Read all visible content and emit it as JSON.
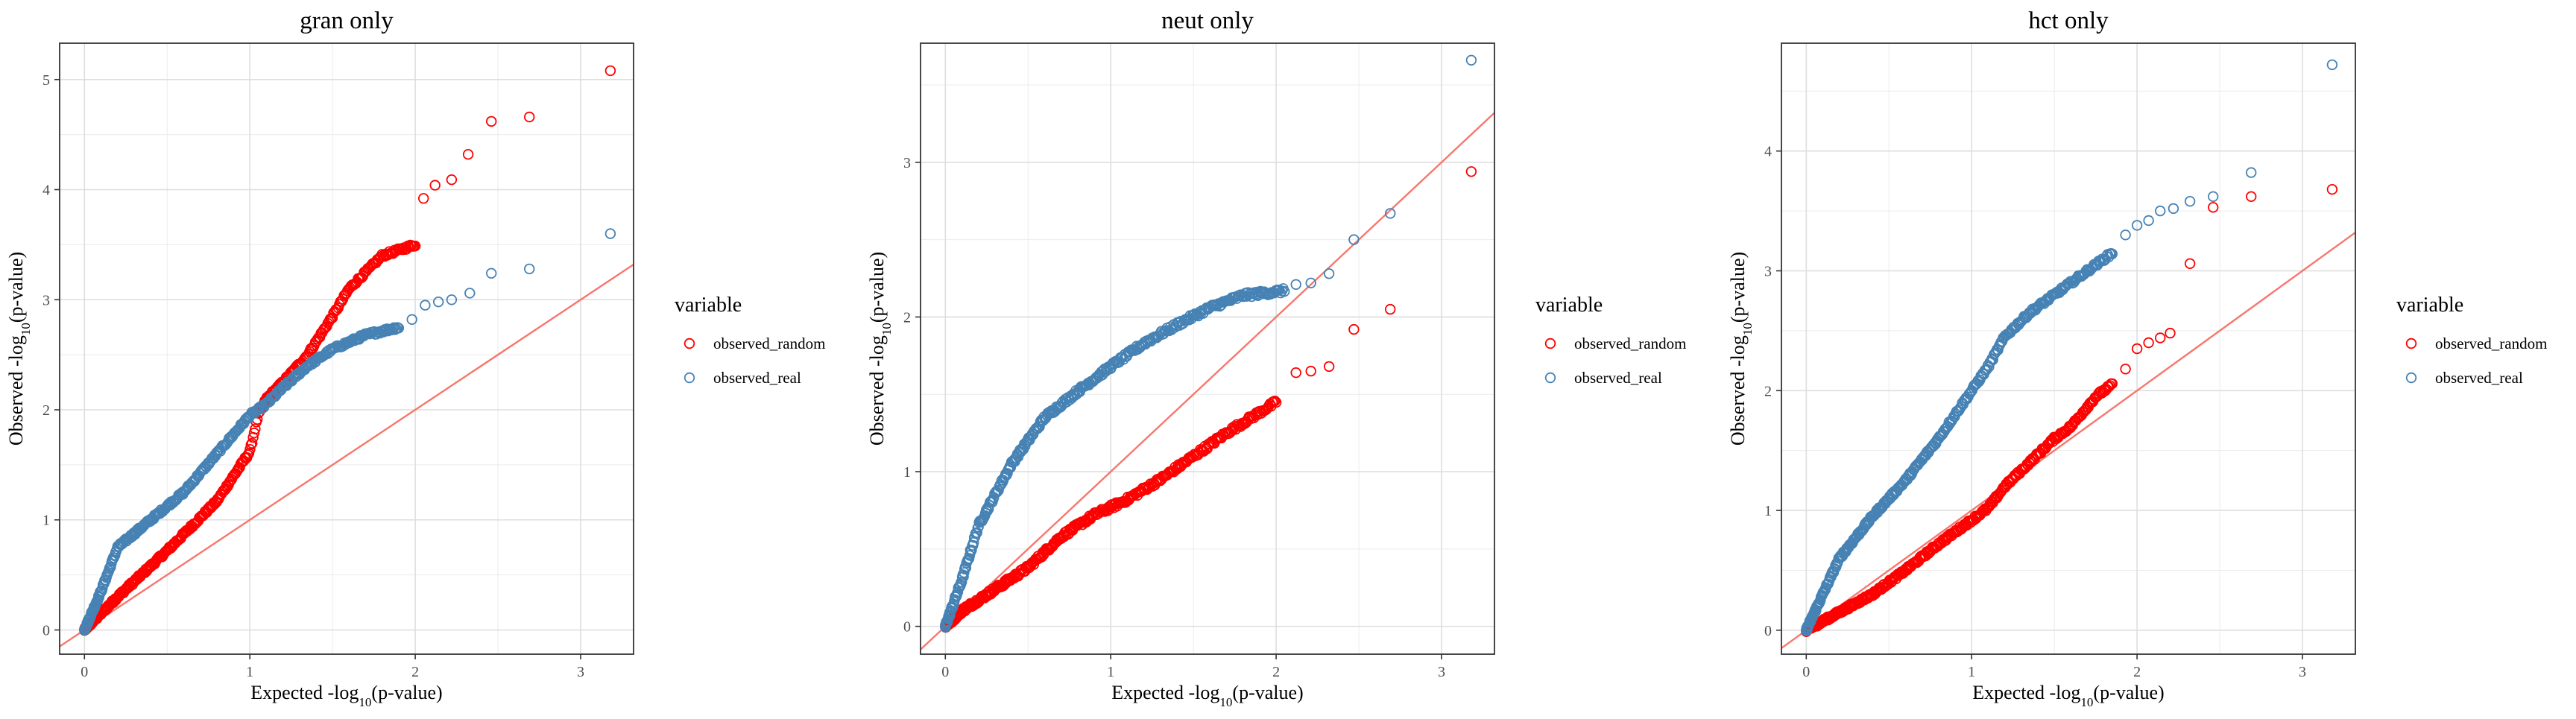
{
  "colors": {
    "observed_random": "#FF0000",
    "observed_real": "#4682B4",
    "diagonal": "#F8766D",
    "grid": "#EBEBEB",
    "frame": "#333333"
  },
  "chart_data": [
    {
      "type": "scatter",
      "title": "gran only",
      "xlabel": "Expected -log10(p-value)",
      "ylabel": "Observed -log10(p-value)",
      "xlim": [
        -0.15,
        3.32
      ],
      "ylim": [
        -0.22,
        5.33
      ],
      "xticks": [
        0,
        1,
        2,
        3
      ],
      "yticks": [
        0,
        1,
        2,
        3,
        4,
        5
      ],
      "diagonal": {
        "slope": 1,
        "intercept": 0
      },
      "legend": {
        "title": "variable",
        "position": "right",
        "entries": [
          "observed_random",
          "observed_real"
        ]
      },
      "series": [
        {
          "name": "observed_random",
          "anchors": [
            [
              0,
              0
            ],
            [
              0.2,
              0.3
            ],
            [
              0.5,
              0.72
            ],
            [
              0.8,
              1.17
            ],
            [
              1.0,
              1.62
            ],
            [
              1.05,
              1.95
            ],
            [
              1.1,
              2.1
            ],
            [
              1.2,
              2.25
            ],
            [
              1.35,
              2.5
            ],
            [
              1.5,
              2.85
            ],
            [
              1.6,
              3.1
            ],
            [
              1.8,
              3.4
            ],
            [
              2.0,
              3.5
            ]
          ],
          "points": [
            [
              2.05,
              3.92
            ],
            [
              2.12,
              4.04
            ],
            [
              2.22,
              4.09
            ],
            [
              2.32,
              4.32
            ],
            [
              2.46,
              4.62
            ],
            [
              2.69,
              4.66
            ],
            [
              3.18,
              5.08
            ]
          ]
        },
        {
          "name": "observed_real",
          "anchors": [
            [
              0,
              0
            ],
            [
              0.1,
              0.35
            ],
            [
              0.2,
              0.75
            ],
            [
              0.4,
              1.0
            ],
            [
              0.6,
              1.25
            ],
            [
              0.8,
              1.6
            ],
            [
              1.0,
              1.95
            ],
            [
              1.1,
              2.05
            ],
            [
              1.2,
              2.2
            ],
            [
              1.35,
              2.4
            ],
            [
              1.5,
              2.55
            ],
            [
              1.7,
              2.68
            ],
            [
              1.9,
              2.75
            ]
          ],
          "points": [
            [
              1.98,
              2.82
            ],
            [
              2.06,
              2.95
            ],
            [
              2.14,
              2.98
            ],
            [
              2.22,
              3.0
            ],
            [
              2.33,
              3.06
            ],
            [
              2.46,
              3.24
            ],
            [
              2.69,
              3.28
            ],
            [
              3.18,
              3.6
            ]
          ]
        }
      ]
    },
    {
      "type": "scatter",
      "title": "neut only",
      "xlabel": "Expected -log10(p-value)",
      "ylabel": "Observed -log10(p-value)",
      "xlim": [
        -0.15,
        3.32
      ],
      "ylim": [
        -0.18,
        3.77
      ],
      "xticks": [
        0,
        1,
        2,
        3
      ],
      "yticks": [
        0,
        1,
        2,
        3
      ],
      "diagonal": {
        "slope": 1,
        "intercept": 0
      },
      "legend": {
        "title": "variable",
        "position": "right",
        "entries": [
          "observed_random",
          "observed_real"
        ]
      },
      "series": [
        {
          "name": "observed_random",
          "anchors": [
            [
              0,
              0
            ],
            [
              0.1,
              0.1
            ],
            [
              0.3,
              0.24
            ],
            [
              0.5,
              0.38
            ],
            [
              0.7,
              0.58
            ],
            [
              0.9,
              0.72
            ],
            [
              1.1,
              0.82
            ],
            [
              1.3,
              0.95
            ],
            [
              1.5,
              1.1
            ],
            [
              1.7,
              1.25
            ],
            [
              1.85,
              1.35
            ],
            [
              2.0,
              1.45
            ]
          ],
          "points": [
            [
              2.12,
              1.64
            ],
            [
              2.21,
              1.65
            ],
            [
              2.32,
              1.68
            ],
            [
              2.47,
              1.92
            ],
            [
              2.69,
              2.05
            ],
            [
              3.18,
              2.94
            ]
          ]
        },
        {
          "name": "observed_real",
          "anchors": [
            [
              0,
              0
            ],
            [
              0.1,
              0.3
            ],
            [
              0.2,
              0.65
            ],
            [
              0.4,
              1.05
            ],
            [
              0.6,
              1.35
            ],
            [
              0.8,
              1.52
            ],
            [
              1.0,
              1.68
            ],
            [
              1.2,
              1.83
            ],
            [
              1.4,
              1.95
            ],
            [
              1.6,
              2.06
            ],
            [
              1.8,
              2.14
            ],
            [
              2.05,
              2.17
            ]
          ],
          "points": [
            [
              2.12,
              2.21
            ],
            [
              2.21,
              2.22
            ],
            [
              2.32,
              2.28
            ],
            [
              2.47,
              2.5
            ],
            [
              2.69,
              2.67
            ],
            [
              3.18,
              3.66
            ]
          ]
        }
      ]
    },
    {
      "type": "scatter",
      "title": "hct only",
      "xlabel": "Expected -log10(p-value)",
      "ylabel": "Observed -log10(p-value)",
      "xlim": [
        -0.15,
        3.32
      ],
      "ylim": [
        -0.2,
        4.9
      ],
      "xticks": [
        0,
        1,
        2,
        3
      ],
      "yticks": [
        0,
        1,
        2,
        3,
        4
      ],
      "diagonal": {
        "slope": 1,
        "intercept": 0
      },
      "legend": {
        "title": "variable",
        "position": "right",
        "entries": [
          "observed_random",
          "observed_real"
        ]
      },
      "series": [
        {
          "name": "observed_random",
          "anchors": [
            [
              0,
              0
            ],
            [
              0.2,
              0.15
            ],
            [
              0.4,
              0.3
            ],
            [
              0.6,
              0.5
            ],
            [
              0.8,
              0.72
            ],
            [
              1.0,
              0.92
            ],
            [
              1.1,
              1.02
            ],
            [
              1.2,
              1.2
            ],
            [
              1.35,
              1.4
            ],
            [
              1.5,
              1.6
            ],
            [
              1.6,
              1.7
            ],
            [
              1.75,
              1.95
            ],
            [
              1.85,
              2.05
            ]
          ],
          "points": [
            [
              1.93,
              2.18
            ],
            [
              2.0,
              2.35
            ],
            [
              2.07,
              2.4
            ],
            [
              2.14,
              2.44
            ],
            [
              2.2,
              2.48
            ],
            [
              2.32,
              3.06
            ],
            [
              2.46,
              3.53
            ],
            [
              2.69,
              3.62
            ],
            [
              3.18,
              3.68
            ]
          ]
        },
        {
          "name": "observed_real",
          "anchors": [
            [
              0,
              0
            ],
            [
              0.1,
              0.3
            ],
            [
              0.2,
              0.6
            ],
            [
              0.4,
              0.95
            ],
            [
              0.6,
              1.25
            ],
            [
              0.8,
              1.6
            ],
            [
              1.0,
              2.0
            ],
            [
              1.1,
              2.2
            ],
            [
              1.2,
              2.45
            ],
            [
              1.35,
              2.65
            ],
            [
              1.5,
              2.8
            ],
            [
              1.6,
              2.9
            ],
            [
              1.75,
              3.05
            ],
            [
              1.85,
              3.15
            ]
          ],
          "points": [
            [
              1.93,
              3.3
            ],
            [
              2.0,
              3.38
            ],
            [
              2.07,
              3.42
            ],
            [
              2.14,
              3.5
            ],
            [
              2.22,
              3.52
            ],
            [
              2.32,
              3.58
            ],
            [
              2.46,
              3.62
            ],
            [
              2.69,
              3.82
            ],
            [
              3.18,
              4.72
            ]
          ]
        }
      ]
    }
  ]
}
